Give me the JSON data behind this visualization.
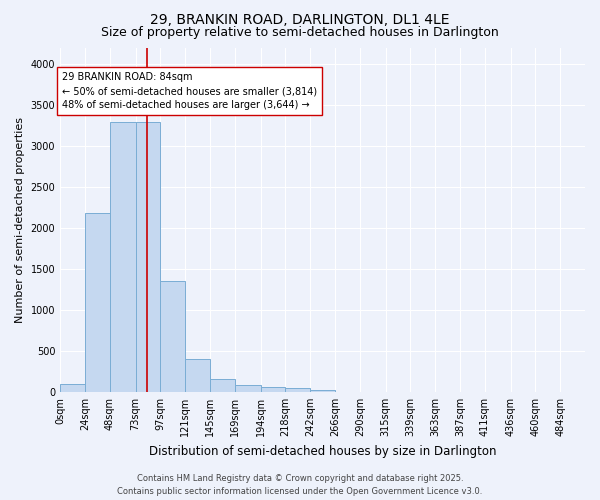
{
  "title": "29, BRANKIN ROAD, DARLINGTON, DL1 4LE",
  "subtitle": "Size of property relative to semi-detached houses in Darlington",
  "xlabel": "Distribution of semi-detached houses by size in Darlington",
  "ylabel": "Number of semi-detached properties",
  "footer_line1": "Contains HM Land Registry data © Crown copyright and database right 2025.",
  "footer_line2": "Contains public sector information licensed under the Open Government Licence v3.0.",
  "bin_labels": [
    "0sqm",
    "24sqm",
    "48sqm",
    "73sqm",
    "97sqm",
    "121sqm",
    "145sqm",
    "169sqm",
    "194sqm",
    "218sqm",
    "242sqm",
    "266sqm",
    "290sqm",
    "315sqm",
    "339sqm",
    "363sqm",
    "387sqm",
    "411sqm",
    "436sqm",
    "460sqm",
    "484sqm"
  ],
  "bar_values": [
    100,
    2180,
    3290,
    3290,
    1350,
    400,
    155,
    90,
    55,
    45,
    25,
    0,
    0,
    0,
    0,
    0,
    0,
    0,
    0,
    0,
    0
  ],
  "bar_color": "#c5d8f0",
  "bar_edgecolor": "#7aadd4",
  "red_line_x": 84,
  "annotation_line1": "29 BRANKIN ROAD: 84sqm",
  "annotation_line2": "← 50% of semi-detached houses are smaller (3,814)",
  "annotation_line3": "48% of semi-detached houses are larger (3,644) →",
  "ylim": [
    0,
    4200
  ],
  "background_color": "#eef2fb",
  "grid_color": "#ffffff",
  "title_fontsize": 10,
  "subtitle_fontsize": 9,
  "ylabel_fontsize": 8,
  "xlabel_fontsize": 8.5,
  "tick_fontsize": 7,
  "annotation_fontsize": 7,
  "footer_fontsize": 6
}
